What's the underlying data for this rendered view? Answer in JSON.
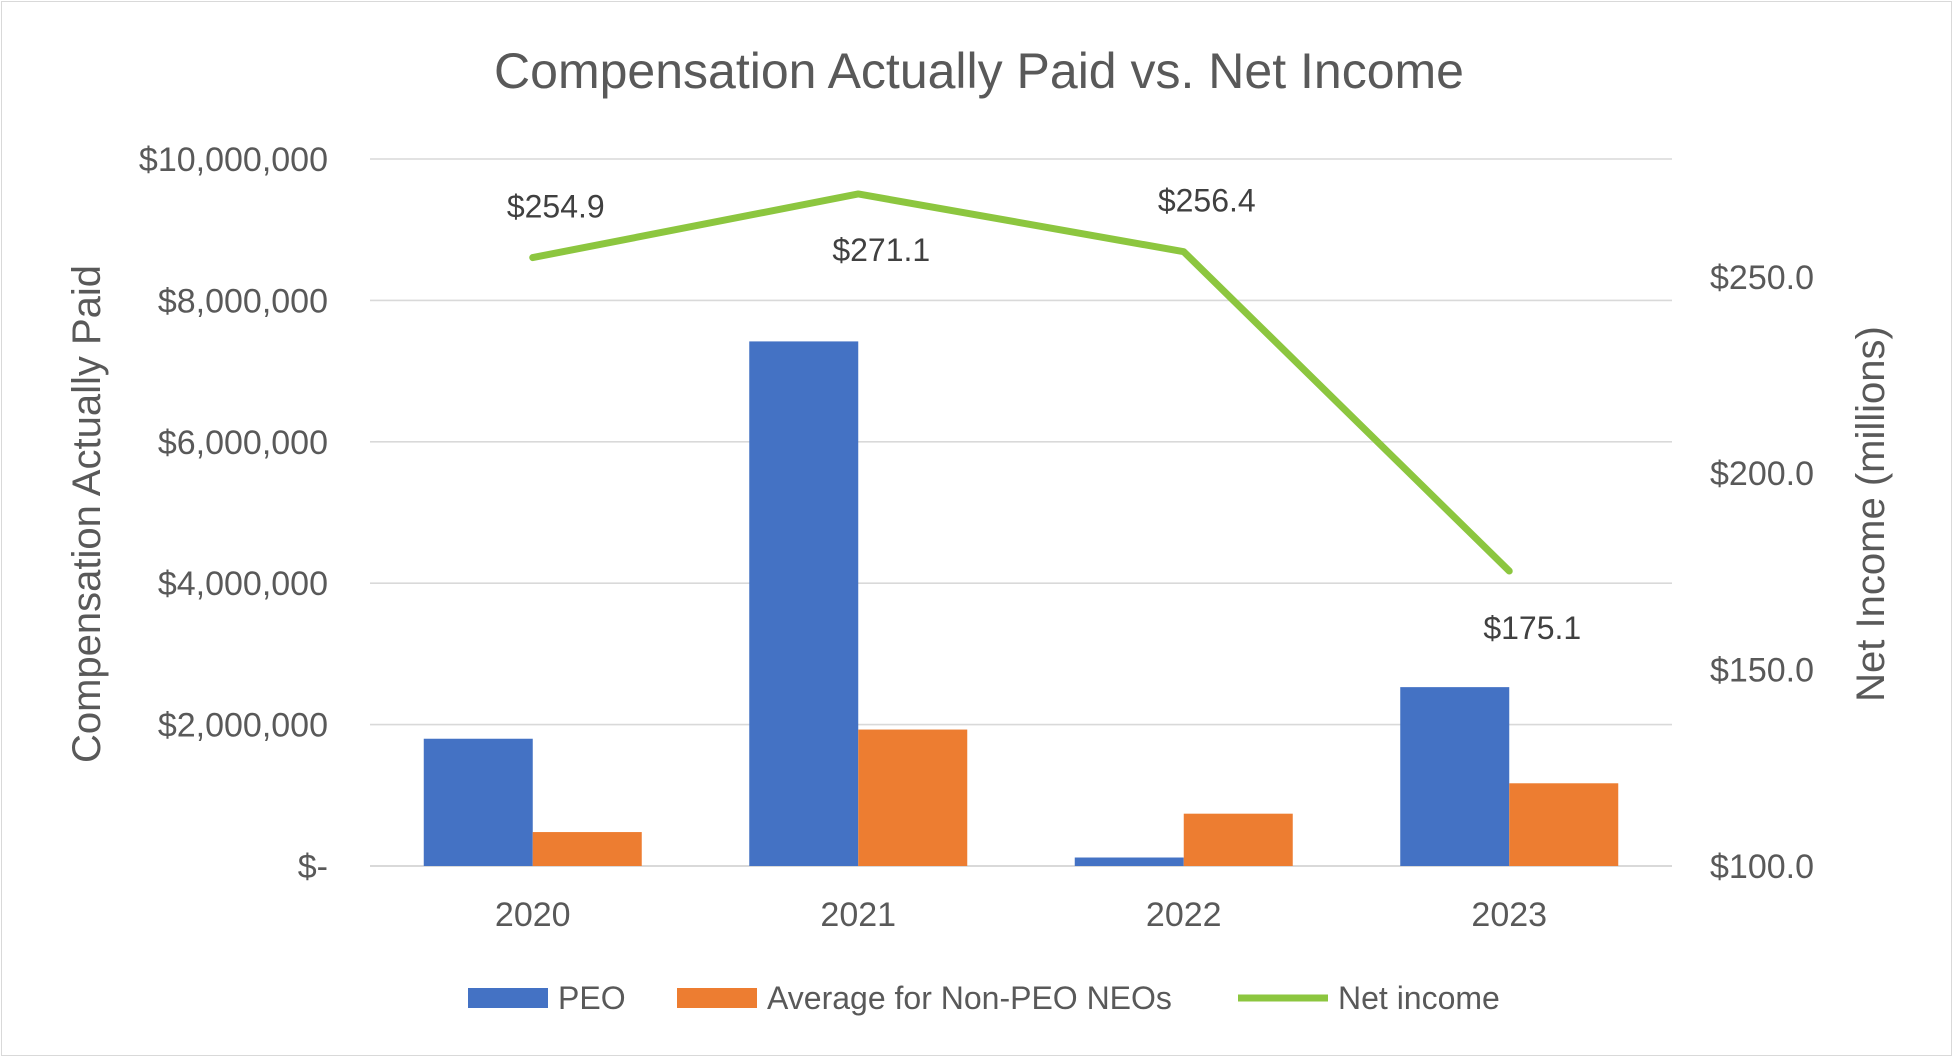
{
  "chart_data": {
    "type": "bar",
    "title": "Compensation Actually Paid vs. Net Income",
    "categories": [
      "2020",
      "2021",
      "2022",
      "2023"
    ],
    "ylabel_left": "Compensation Actually Paid",
    "ylabel_right": "Net Income (millions)",
    "ylim_left": [
      0,
      10000000
    ],
    "ylim_right": [
      100,
      280
    ],
    "left_ticks": [
      {
        "value": 0,
        "label": "$-"
      },
      {
        "value": 2000000,
        "label": "$2,000,000"
      },
      {
        "value": 4000000,
        "label": "$4,000,000"
      },
      {
        "value": 6000000,
        "label": "$6,000,000"
      },
      {
        "value": 8000000,
        "label": "$8,000,000"
      },
      {
        "value": 10000000,
        "label": "$10,000,000"
      }
    ],
    "right_ticks": [
      {
        "value": 100,
        "label": "$100.0"
      },
      {
        "value": 150,
        "label": "$150.0"
      },
      {
        "value": 200,
        "label": "$200.0"
      },
      {
        "value": 250,
        "label": "$250.0"
      }
    ],
    "grid": true,
    "legend_position": "bottom",
    "series": [
      {
        "name": "PEO",
        "type": "bar",
        "axis": "left",
        "color": "#4472C4",
        "values": [
          1800000,
          7420000,
          120000,
          2530000
        ]
      },
      {
        "name": "Average for Non-PEO NEOs",
        "type": "bar",
        "axis": "left",
        "color": "#ED7D31",
        "values": [
          480000,
          1930000,
          740000,
          1170000
        ]
      },
      {
        "name": "Net income",
        "type": "line",
        "axis": "right",
        "color": "#8CC63F",
        "values": [
          254.9,
          271.1,
          256.4,
          175.1
        ],
        "labels": [
          "$254.9",
          "$271.1",
          "$256.4",
          "$175.1"
        ]
      }
    ]
  }
}
